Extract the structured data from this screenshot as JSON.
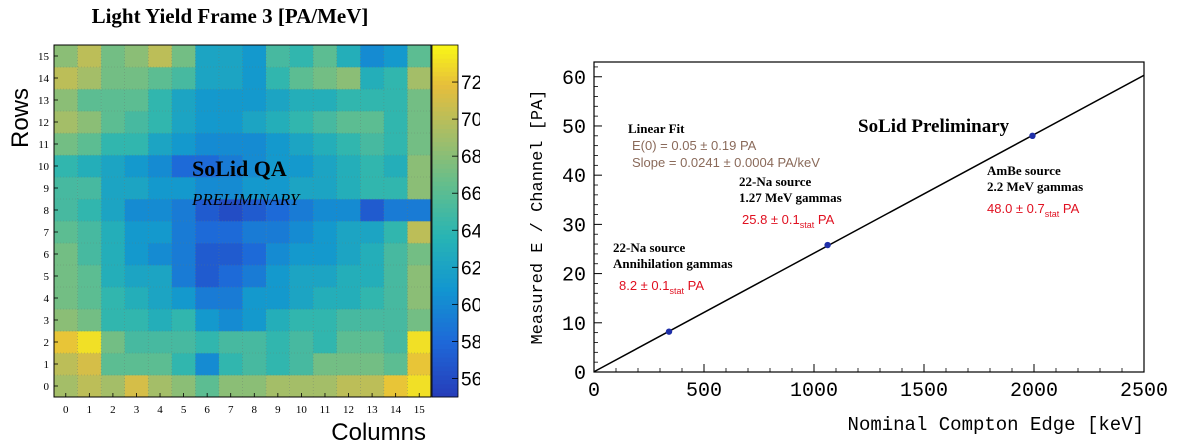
{
  "chart_data": [
    {
      "type": "heatmap",
      "title": "Light Yield Frame 3 [PA/MeV]",
      "xlabel": "Columns",
      "ylabel": "Rows",
      "x_ticks": [
        "0",
        "1",
        "2",
        "3",
        "4",
        "5",
        "6",
        "7",
        "8",
        "9",
        "10",
        "11",
        "12",
        "13",
        "14",
        "15"
      ],
      "y_ticks": [
        "0",
        "1",
        "2",
        "3",
        "4",
        "5",
        "6",
        "7",
        "8",
        "9",
        "10",
        "11",
        "12",
        "13",
        "14",
        "15"
      ],
      "colorbar": {
        "min": 55,
        "max": 74,
        "ticks": [
          "56",
          "58",
          "60",
          "62",
          "64",
          "66",
          "68",
          "70",
          "72"
        ]
      },
      "annotations": [
        "SoLid QA",
        "PRELIMINARY"
      ],
      "values": [
        [
          69,
          70,
          69,
          71,
          69,
          68,
          66,
          68,
          68,
          69,
          69,
          69,
          70,
          70,
          72,
          73
        ],
        [
          70,
          71,
          66,
          66,
          66,
          64,
          60,
          64,
          65,
          64,
          65,
          67,
          67,
          67,
          66,
          72
        ],
        [
          72,
          73,
          67,
          65,
          65,
          65,
          64,
          65,
          65,
          64,
          65,
          64,
          66,
          66,
          65,
          73
        ],
        [
          68,
          67,
          64,
          64,
          63,
          64,
          61,
          60,
          61,
          63,
          64,
          64,
          65,
          65,
          65,
          67
        ],
        [
          67,
          66,
          64,
          63,
          62,
          61,
          59,
          59,
          61,
          61,
          62,
          63,
          63,
          64,
          65,
          68
        ],
        [
          67,
          66,
          63,
          62,
          62,
          59,
          57,
          58,
          59,
          61,
          62,
          62,
          63,
          63,
          65,
          68
        ],
        [
          67,
          65,
          63,
          61,
          60,
          59,
          57,
          57,
          58,
          60,
          61,
          61,
          62,
          63,
          65,
          67
        ],
        [
          66,
          65,
          63,
          61,
          61,
          59,
          58,
          58,
          59,
          59,
          60,
          61,
          62,
          62,
          64,
          70
        ],
        [
          65,
          64,
          62,
          60,
          60,
          59,
          57,
          56,
          57,
          58,
          59,
          60,
          60,
          57,
          59,
          59
        ],
        [
          65,
          65,
          62,
          62,
          61,
          61,
          60,
          60,
          61,
          61,
          62,
          62,
          63,
          64,
          64,
          68
        ],
        [
          64,
          63,
          62,
          61,
          60,
          58,
          58,
          59,
          60,
          61,
          61,
          62,
          63,
          64,
          63,
          68
        ],
        [
          67,
          66,
          64,
          64,
          62,
          61,
          60,
          60,
          60,
          61,
          62,
          63,
          64,
          65,
          64,
          67
        ],
        [
          69,
          68,
          66,
          65,
          64,
          62,
          61,
          61,
          62,
          63,
          64,
          65,
          66,
          66,
          64,
          67
        ],
        [
          68,
          66,
          66,
          66,
          64,
          62,
          61,
          61,
          61,
          62,
          63,
          63,
          64,
          64,
          64,
          67
        ],
        [
          70,
          69,
          67,
          67,
          66,
          65,
          62,
          62,
          61,
          64,
          66,
          67,
          68,
          63,
          64,
          69
        ],
        [
          68,
          70,
          67,
          68,
          70,
          67,
          62,
          62,
          61,
          65,
          64,
          66,
          63,
          60,
          61,
          66
        ]
      ]
    },
    {
      "type": "scatter",
      "xlabel": "Nominal Compton Edge [keV]",
      "ylabel": "Measured E / Channel [PA]",
      "xlim": [
        0,
        2500
      ],
      "ylim": [
        0,
        63
      ],
      "x_ticks": [
        "0",
        "500",
        "1000",
        "1500",
        "2000",
        "2500"
      ],
      "y_ticks": [
        "0",
        "10",
        "20",
        "30",
        "40",
        "50",
        "60"
      ],
      "header": "SoLid Preliminary",
      "fit": {
        "label": "Linear Fit",
        "intercept": 0.05,
        "slope": 0.0241,
        "line1": "E(0) = 0.05 ± 0.19 PA",
        "line2": "Slope = 0.0241 ± 0.0004 PA/keV"
      },
      "points": [
        {
          "x": 341,
          "y": 8.2,
          "label1": "22-Na source",
          "label2": "Annihilation gammas",
          "value": "8.2 ± 0.1",
          "sub": "stat",
          "unit": " PA"
        },
        {
          "x": 1062,
          "y": 25.8,
          "label1": "22-Na source",
          "label2": "1.27 MeV gammas",
          "value": "25.8 ± 0.1",
          "sub": "stat",
          "unit": " PA"
        },
        {
          "x": 1993,
          "y": 48.0,
          "label1": "AmBe source",
          "label2": "2.2 MeV gammas",
          "value": "48.0 ± 0.7",
          "sub": "stat",
          "unit": " PA"
        }
      ]
    }
  ]
}
